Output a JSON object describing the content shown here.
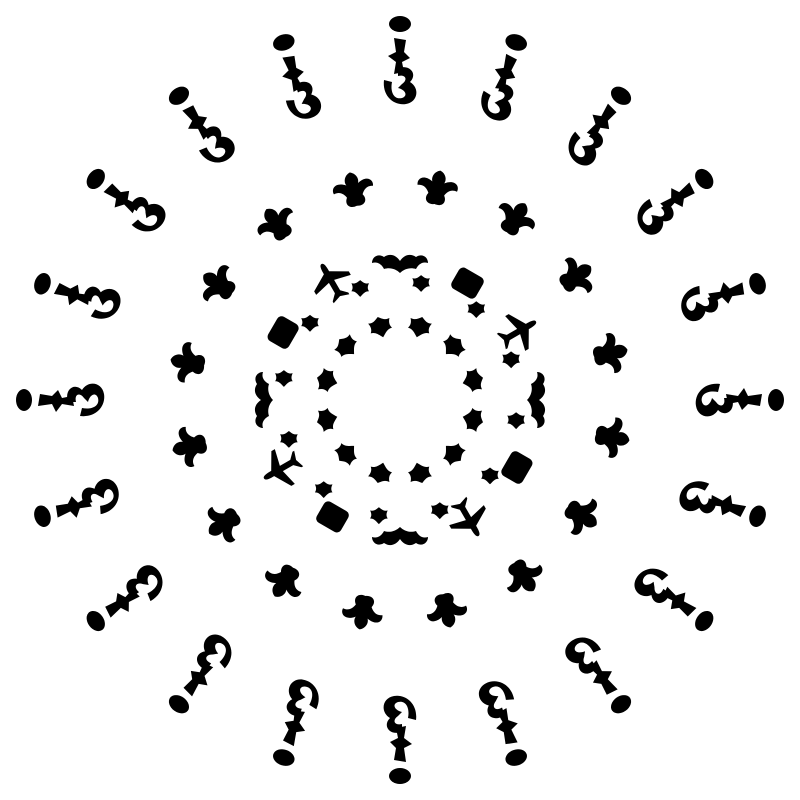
{
  "artwork": {
    "background_color": "#ffffff",
    "ink_color": "#000000",
    "style": "radial-mandala-silhouettes",
    "rings": [
      {
        "name": "outer-glyph-ring",
        "motif": "glyph-cluster",
        "count": 20,
        "symmetry": "radial"
      },
      {
        "name": "bird-ring",
        "motif": "bird",
        "count": 16,
        "symmetry": "radial"
      },
      {
        "name": "middle-shape-ring",
        "motif": "mixed-plane-bat-square",
        "count": 12,
        "symmetry": "radial"
      },
      {
        "name": "inner-flower-ring",
        "motif": "flower-star",
        "count": 12,
        "symmetry": "radial"
      }
    ]
  }
}
